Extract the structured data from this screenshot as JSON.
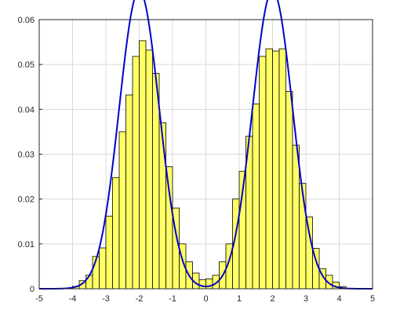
{
  "chart_data": {
    "type": "bar",
    "title": "",
    "xlabel": "",
    "ylabel": "",
    "xlim": [
      -5,
      5
    ],
    "ylim": [
      0,
      0.06
    ],
    "grid": true,
    "x_ticks": [
      -5,
      -4,
      -3,
      -2,
      -1,
      0,
      1,
      2,
      3,
      4,
      5
    ],
    "x_tick_labels": [
      "-5",
      "-4",
      "-3",
      "-2",
      "-1",
      "0",
      "1",
      "2",
      "3",
      "4",
      "5"
    ],
    "y_ticks": [
      0,
      0.01,
      0.02,
      0.03,
      0.04,
      0.05,
      0.06
    ],
    "y_tick_labels": [
      "0",
      "0.01",
      "0.02",
      "0.03",
      "0.04",
      "0.05",
      "0.06"
    ],
    "bin_width": 0.2,
    "bins_left_edges": [
      -5.0,
      -4.8,
      -4.6,
      -4.4,
      -4.2,
      -4.0,
      -3.8,
      -3.6,
      -3.4,
      -3.2,
      -3.0,
      -2.8,
      -2.6,
      -2.4,
      -2.2,
      -2.0,
      -1.8,
      -1.6,
      -1.4,
      -1.2,
      -1.0,
      -0.8,
      -0.6,
      -0.4,
      -0.2,
      0.0,
      0.2,
      0.4,
      0.6,
      0.8,
      1.0,
      1.2,
      1.4,
      1.6,
      1.8,
      2.0,
      2.2,
      2.4,
      2.6,
      2.8,
      3.0,
      3.2,
      3.4,
      3.6,
      3.8,
      4.0,
      4.2,
      4.4,
      4.6,
      4.8
    ],
    "histogram_values": [
      0.0,
      0.0,
      0.0,
      0.0,
      0.0001,
      0.0005,
      0.0018,
      0.003,
      0.0072,
      0.0091,
      0.0162,
      0.0248,
      0.035,
      0.0432,
      0.0518,
      0.0553,
      0.0532,
      0.048,
      0.037,
      0.0272,
      0.018,
      0.01,
      0.006,
      0.0035,
      0.002,
      0.0022,
      0.003,
      0.006,
      0.01,
      0.02,
      0.0262,
      0.034,
      0.0412,
      0.0518,
      0.0535,
      0.053,
      0.0535,
      0.044,
      0.032,
      0.0235,
      0.016,
      0.009,
      0.0045,
      0.003,
      0.0015,
      0.0005,
      0.0001,
      0.0,
      0.0,
      0.0
    ],
    "fit_curve": {
      "type": "gaussian_mixture",
      "components": [
        {
          "mean": -2,
          "sd": 0.6,
          "weight": 0.5
        },
        {
          "mean": 2,
          "sd": 0.6,
          "weight": 0.5
        }
      ]
    },
    "colors": {
      "bars_fill": "#ffff66",
      "bars_stroke": "#000000",
      "curve": "#0000cc",
      "grid": "#d9d9d9",
      "axes": "#262626",
      "background": "#ffffff"
    }
  }
}
